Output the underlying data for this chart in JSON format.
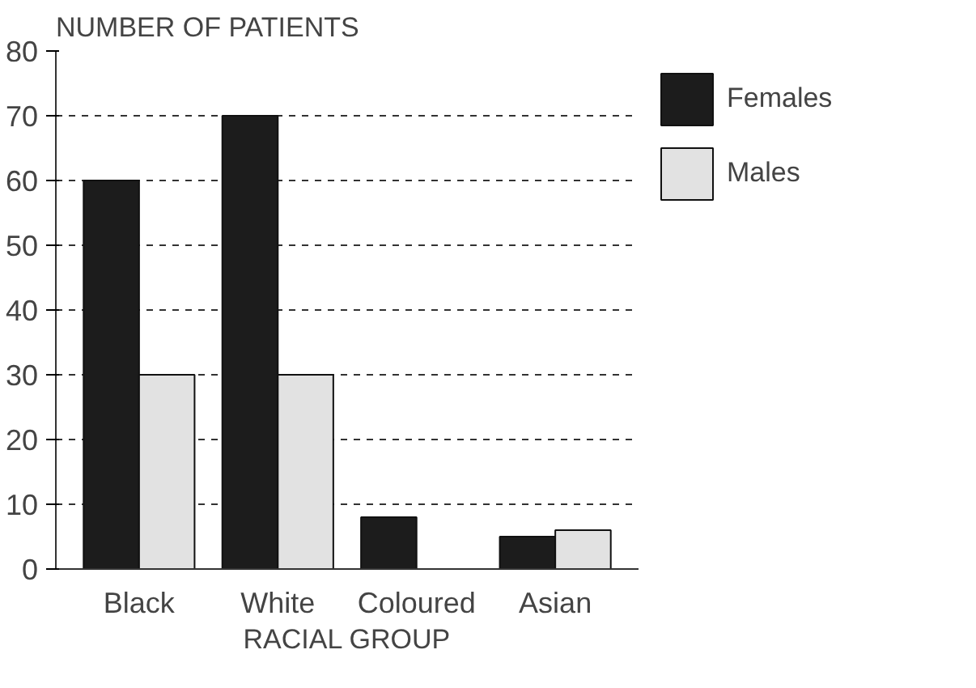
{
  "chart_data": {
    "type": "bar",
    "ylabel": "NUMBER OF PATIENTS",
    "xlabel": "RACIAL GROUP",
    "categories": [
      "Black",
      "White",
      "Coloured",
      "Asian"
    ],
    "series": [
      {
        "name": "Females",
        "color": "#1c1c1c",
        "values": [
          60,
          70,
          8,
          5
        ]
      },
      {
        "name": "Males",
        "color": "#e2e2e2",
        "values": [
          30,
          30,
          null,
          6
        ]
      }
    ],
    "ylim": [
      0,
      80
    ],
    "yticks": [
      0,
      10,
      20,
      30,
      40,
      50,
      60,
      70,
      80
    ],
    "grid": "y",
    "legend": "top right"
  }
}
